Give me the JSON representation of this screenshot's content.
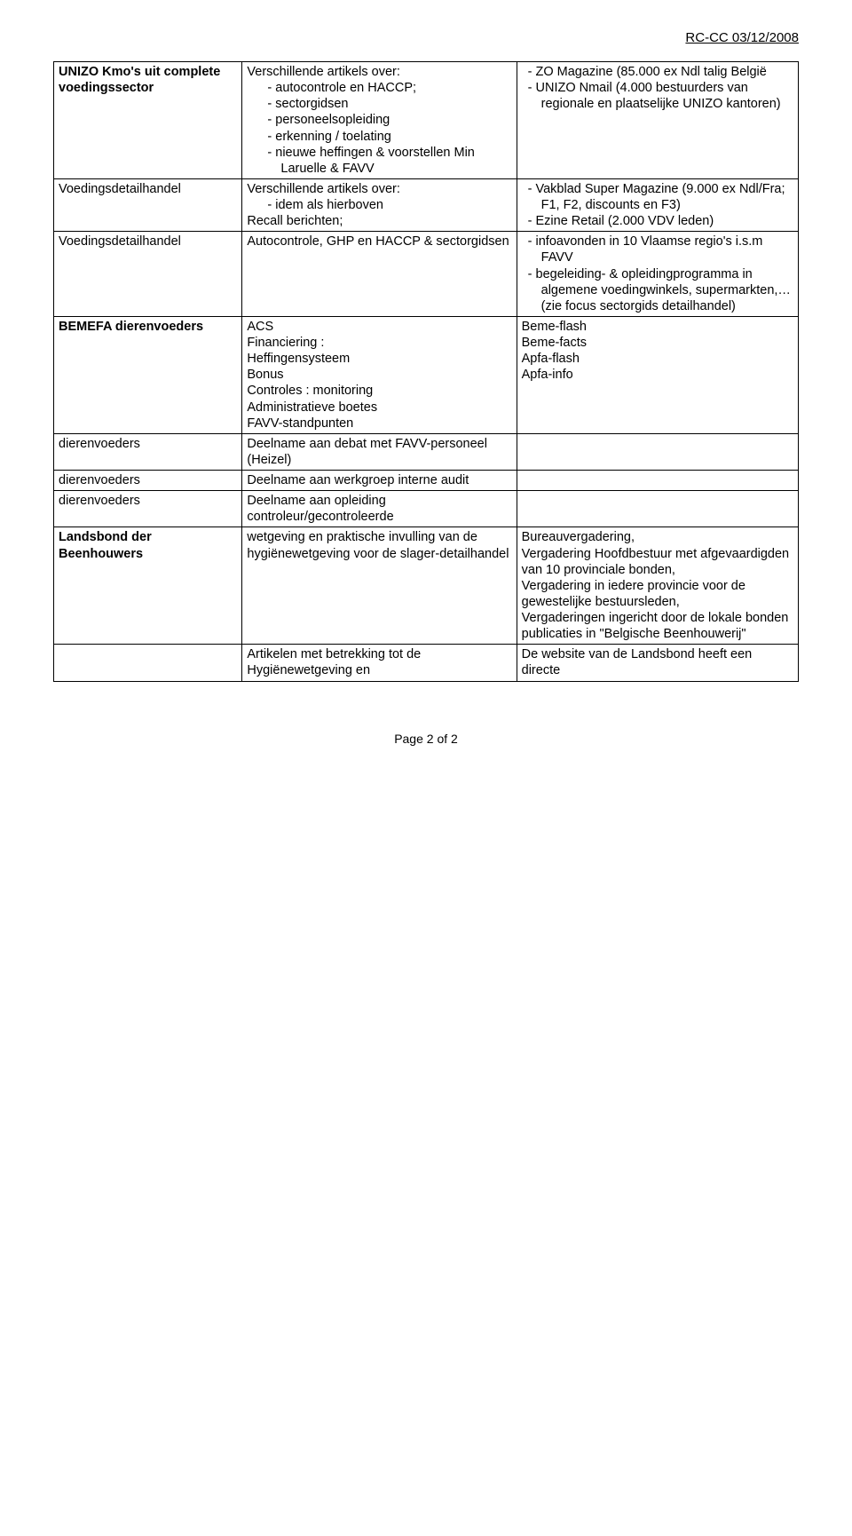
{
  "header": {
    "doc_ref": "RC-CC 03/12/2008"
  },
  "rows": [
    {
      "col1_bold": "UNIZO Kmo's uit complete voedingssector",
      "col2_intro": "Verschillende artikels over:",
      "col2_items": [
        "autocontrole en HACCP;",
        "sectorgidsen",
        "personeelsopleiding",
        "erkenning / toelating",
        "nieuwe heffingen & voorstellen Min Laruelle & FAVV"
      ],
      "col3_items": [
        "ZO Magazine (85.000 ex Ndl talig België",
        "UNIZO Nmail (4.000 bestuurders van regionale en plaatselijke UNIZO kantoren)"
      ]
    },
    {
      "col1_plain": "Voedingsdetailhandel",
      "col2_intro": "Verschillende artikels over:",
      "col2_items": [
        "idem als hierboven"
      ],
      "col2_after": "Recall berichten;",
      "col3_items": [
        "Vakblad Super Magazine (9.000 ex Ndl/Fra; F1, F2, discounts en F3)",
        "Ezine Retail (2.000 VDV leden)"
      ]
    },
    {
      "col1_plain": "Voedingsdetailhandel",
      "col2_plain": "Autocontrole, GHP en HACCP & sectorgidsen",
      "col3_items": [
        "infoavonden in 10 Vlaamse regio's i.s.m FAVV",
        "begeleiding- & opleidingprogramma in algemene voedingwinkels, supermarkten,… (zie focus sectorgids detailhandel)"
      ]
    },
    {
      "col1_bold": "BEMEFA dierenvoeders",
      "col2_lines": [
        "ACS",
        "Financiering :",
        "Heffingensysteem",
        "Bonus",
        "Controles : monitoring",
        "Administratieve boetes",
        "FAVV-standpunten"
      ],
      "col3_lines": [
        "Beme-flash",
        "Beme-facts",
        "Apfa-flash",
        "Apfa-info"
      ]
    },
    {
      "col1_plain": "dierenvoeders",
      "col2_plain": "Deelname aan debat met FAVV-personeel (Heizel)",
      "col3_plain": ""
    },
    {
      "col1_plain": "dierenvoeders",
      "col2_plain": "Deelname aan werkgroep interne audit",
      "col3_plain": ""
    },
    {
      "col1_plain": "dierenvoeders",
      "col2_plain": "Deelname aan opleiding controleur/gecontroleerde",
      "col3_plain": ""
    },
    {
      "col1_bold": "Landsbond der Beenhouwers",
      "col2_plain": "wetgeving en praktische invulling van de hygiënewetgeving voor de slager-detailhandel",
      "col3_lines_long": [
        "Bureauvergadering,",
        "Vergadering Hoofdbestuur met afgevaardigden van 10 provinciale bonden,",
        "Vergadering in iedere provincie voor de gewestelijke bestuursleden,",
        "Vergaderingen ingericht door de lokale bonden",
        "publicaties in \"Belgische Beenhouwerij\""
      ]
    },
    {
      "col1_plain": "",
      "col2_plain": "Artikelen met betrekking tot de Hygiënewetgeving en",
      "col3_plain": "De website van de Landsbond heeft een directe"
    }
  ],
  "footer": {
    "text": "Page 2 of 2"
  }
}
